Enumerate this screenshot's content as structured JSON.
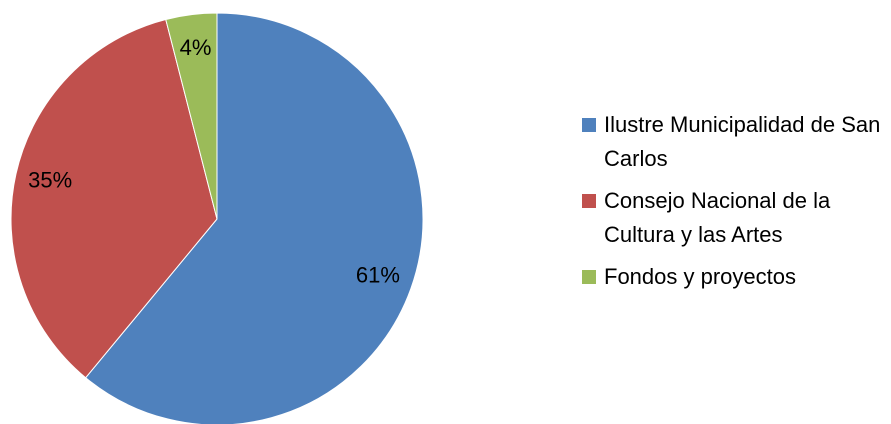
{
  "chart_data": {
    "type": "pie",
    "categories": [
      "Ilustre Municipalidad de San Carlos",
      "Consejo Nacional de la Cultura y las Artes",
      "Fondos y proyectos"
    ],
    "values": [
      61,
      35,
      4
    ],
    "value_labels": [
      "61%",
      "35%",
      "4%"
    ],
    "colors": [
      "#4f81bd",
      "#c0504d",
      "#9bbb59"
    ],
    "legend": "right"
  }
}
